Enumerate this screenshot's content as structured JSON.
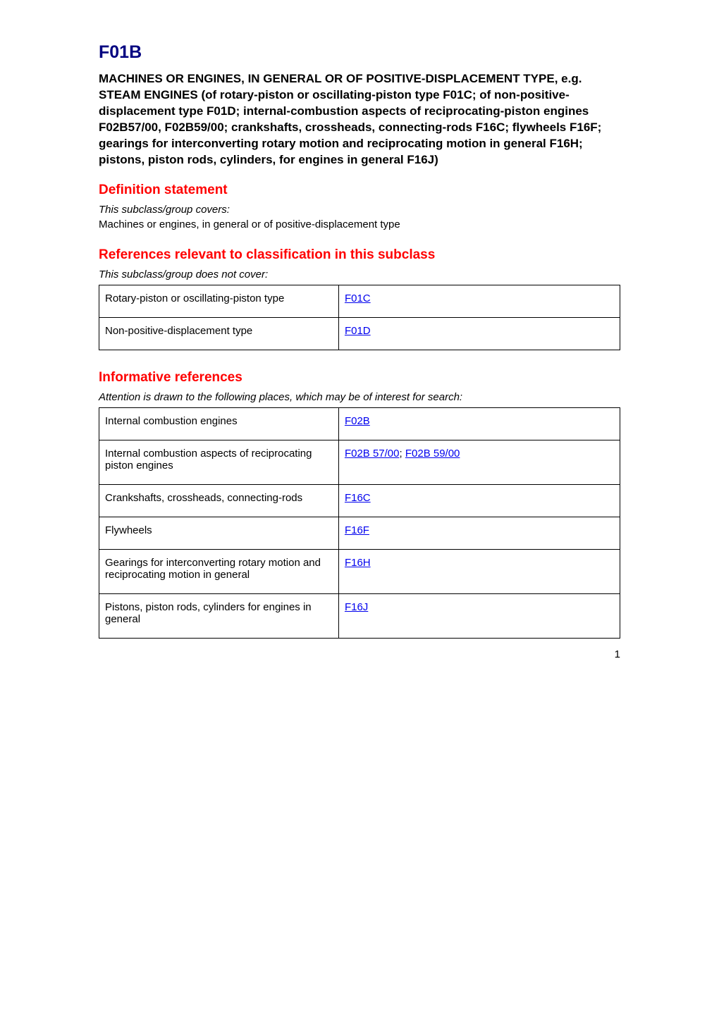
{
  "header": {
    "code": "F01B",
    "title": "MACHINES OR ENGINES, IN GENERAL OR OF POSITIVE-DISPLACEMENT TYPE, e.g. STEAM ENGINES (of rotary-piston or oscillating-piston type F01C; of non-positive-displacement type F01D; internal-combustion aspects of reciprocating-piston engines F02B57/00, F02B59/00; crankshafts, crossheads, connecting-rods F16C; flywheels F16F; gearings for interconverting rotary motion and reciprocating motion in general F16H; pistons, piston rods, cylinders, for engines in general F16J)"
  },
  "definition": {
    "heading": "Definition statement",
    "caption": "This subclass/group covers:",
    "text": "Machines or engines, in general or of positive-displacement type"
  },
  "references_relevant": {
    "heading": "References relevant to classification in this subclass",
    "caption": "This subclass/group does not cover:",
    "rows": [
      {
        "desc": "Rotary-piston or oscillating-piston type",
        "link": "F01C"
      },
      {
        "desc": "Non-positive-displacement type",
        "link": "F01D"
      }
    ]
  },
  "informative_references": {
    "heading": "Informative references",
    "caption": "Attention is drawn to the following places, which may be of interest for search:",
    "rows": [
      {
        "desc": "Internal combustion engines",
        "link": "F02B"
      },
      {
        "desc": "Internal combustion aspects of reciprocating piston engines",
        "link": "F02B 57/00; F02B 59/00",
        "links": [
          "F02B 57/00",
          "F02B 59/00"
        ]
      },
      {
        "desc": "Crankshafts, crossheads, connecting-rods",
        "link": "F16C"
      },
      {
        "desc": "Flywheels",
        "link": "F16F"
      },
      {
        "desc": "Gearings for interconverting rotary motion and reciprocating motion in general",
        "link": "F16H"
      },
      {
        "desc": "Pistons, piston rods, cylinders for engines in general",
        "link": "F16J"
      }
    ]
  },
  "page_number": "1"
}
